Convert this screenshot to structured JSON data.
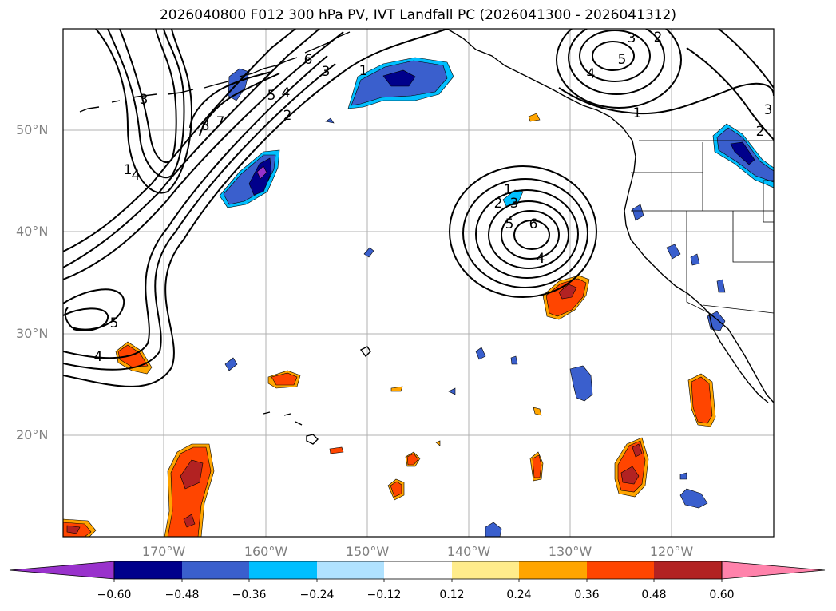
{
  "title": "2026040800 F012 300 hPa PV, IVT Landfall PC (2026041300 - 2026041312)",
  "map": {
    "lat_labels": [
      "50°N",
      "40°N",
      "30°N",
      "20°N"
    ],
    "lon_labels": [
      "170°W",
      "160°W",
      "150°W",
      "140°W",
      "130°W",
      "120°W"
    ],
    "contour_labels": [
      {
        "id": "c1",
        "text": "1"
      },
      {
        "id": "c2",
        "text": "2"
      },
      {
        "id": "c3",
        "text": "3"
      },
      {
        "id": "c4",
        "text": "4"
      },
      {
        "id": "c5",
        "text": "5"
      },
      {
        "id": "c6",
        "text": "6"
      },
      {
        "id": "c7",
        "text": "7"
      },
      {
        "id": "c8",
        "text": "8"
      },
      {
        "id": "c9",
        "text": "1"
      },
      {
        "id": "c10",
        "text": "3"
      },
      {
        "id": "c11",
        "text": "1"
      },
      {
        "id": "c12",
        "text": "2"
      },
      {
        "id": "c13",
        "text": "3"
      },
      {
        "id": "c14",
        "text": "4"
      },
      {
        "id": "c15",
        "text": "5"
      },
      {
        "id": "c16",
        "text": "6"
      },
      {
        "id": "c17",
        "text": "4"
      },
      {
        "id": "c18",
        "text": "5"
      },
      {
        "id": "c19",
        "text": "4"
      },
      {
        "id": "c20",
        "text": "3"
      },
      {
        "id": "c21",
        "text": "2"
      },
      {
        "id": "c22",
        "text": "5"
      },
      {
        "id": "c23",
        "text": "4"
      },
      {
        "id": "c24",
        "text": "1"
      },
      {
        "id": "c25",
        "text": "2"
      },
      {
        "id": "c26",
        "text": "3"
      }
    ]
  },
  "colorbar": {
    "colors": [
      "#9932cc",
      "#00008b",
      "#3a5fcd",
      "#00bfff",
      "#b0e2ff",
      "#ffffff",
      "#ffec8b",
      "#ffa500",
      "#ff4500",
      "#b22222",
      "#ff82ab"
    ],
    "tick_labels": [
      "−0.60",
      "−0.48",
      "−0.36",
      "−0.24",
      "−0.12",
      "0.12",
      "0.24",
      "0.36",
      "0.48",
      "0.60"
    ]
  }
}
